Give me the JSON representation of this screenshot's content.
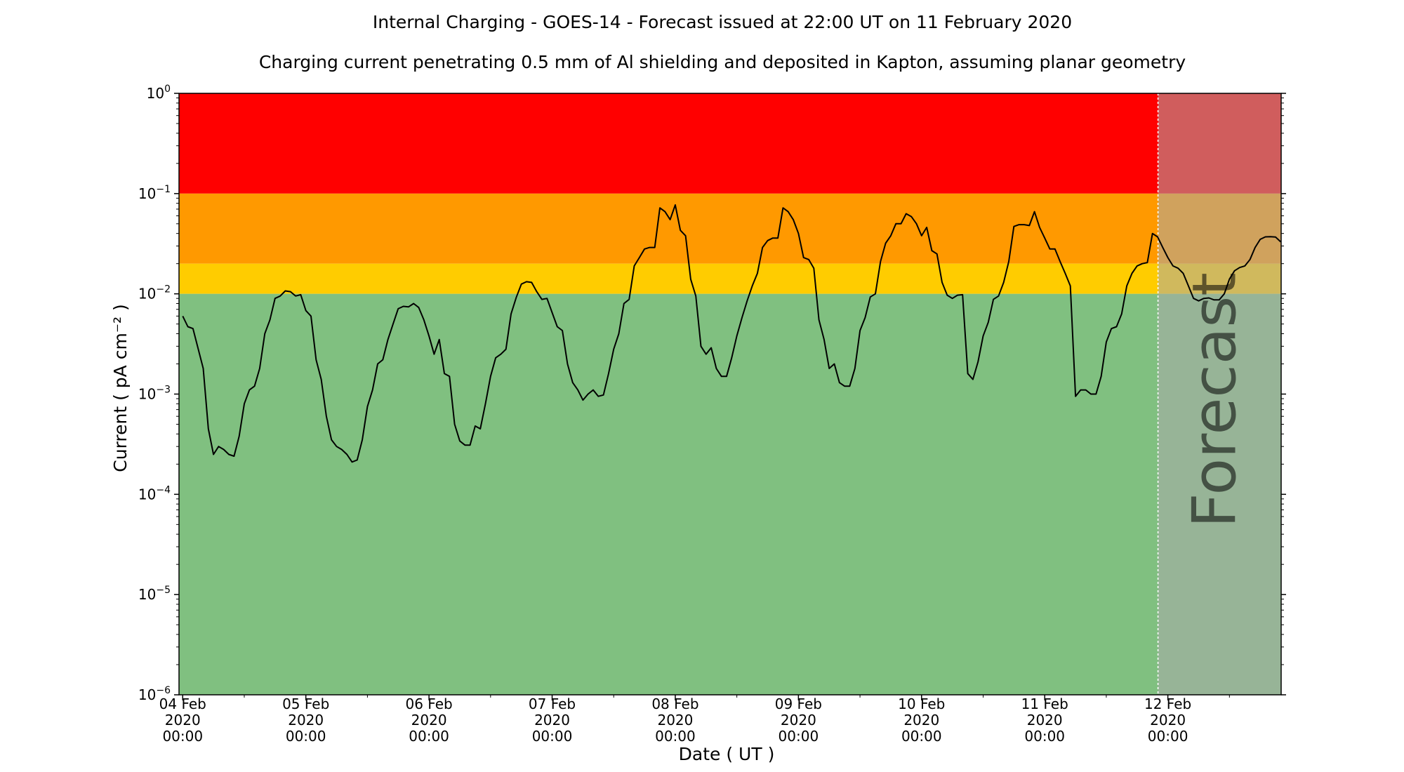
{
  "chart_data": {
    "type": "line",
    "title": "Internal Charging - GOES-14 - Forecast issued at 22:00 UT on 11 February 2020",
    "subtitle": "Charging current penetrating 0.5 mm of Al shielding and deposited in Kapton, assuming planar geometry",
    "xlabel": "Date ( UT )",
    "ylabel": "Current ( pA cm⁻² )",
    "y_scale": "log",
    "ylim": [
      1e-06,
      1
    ],
    "xlim_days": [
      -0.03,
      8.92
    ],
    "grid": false,
    "forecast_label": "Forecast",
    "forecast_start_day": 7.92,
    "x_tick_labels": [
      [
        "04 Feb",
        "2020",
        "00:00"
      ],
      [
        "05 Feb",
        "2020",
        "00:00"
      ],
      [
        "06 Feb",
        "2020",
        "00:00"
      ],
      [
        "07 Feb",
        "2020",
        "00:00"
      ],
      [
        "08 Feb",
        "2020",
        "00:00"
      ],
      [
        "09 Feb",
        "2020",
        "00:00"
      ],
      [
        "10 Feb",
        "2020",
        "00:00"
      ],
      [
        "11 Feb",
        "2020",
        "00:00"
      ],
      [
        "12 Feb",
        "2020",
        "00:00"
      ]
    ],
    "y_tick_labels": [
      {
        "base": "10",
        "exp": "0",
        "value": 1
      },
      {
        "base": "10",
        "exp": "−1",
        "value": 0.1
      },
      {
        "base": "10",
        "exp": "−2",
        "value": 0.01
      },
      {
        "base": "10",
        "exp": "−3",
        "value": 0.001
      },
      {
        "base": "10",
        "exp": "−4",
        "value": 0.0001
      },
      {
        "base": "10",
        "exp": "−5",
        "value": 1e-05
      },
      {
        "base": "10",
        "exp": "−6",
        "value": 1e-06
      }
    ],
    "levels": [
      {
        "from": 0.1,
        "to": 1,
        "color": "#ff0000"
      },
      {
        "from": 0.02,
        "to": 0.1,
        "color": "#ff9900"
      },
      {
        "from": 0.01,
        "to": 0.02,
        "color": "#ffcc00"
      },
      {
        "from": 1e-06,
        "to": 0.01,
        "color": "#80c080"
      }
    ],
    "forecast_overlay_color": "#a9a9a9",
    "line_color": "#000000",
    "series": [
      {
        "points": [
          [
            "2020-02-04 00:00",
            0.006
          ],
          [
            "2020-02-04 01:00",
            0.0047
          ],
          [
            "2020-02-04 02:00",
            0.0045
          ],
          [
            "2020-02-04 04:00",
            0.0018
          ],
          [
            "2020-02-04 05:00",
            0.00045
          ],
          [
            "2020-02-04 06:00",
            0.00025
          ],
          [
            "2020-02-04 07:00",
            0.0003
          ],
          [
            "2020-02-04 08:00",
            0.00028
          ],
          [
            "2020-02-04 09:00",
            0.00025
          ],
          [
            "2020-02-04 10:00",
            0.00024
          ],
          [
            "2020-02-04 11:00",
            0.00038
          ],
          [
            "2020-02-04 12:00",
            0.0008
          ],
          [
            "2020-02-04 13:00",
            0.0011
          ],
          [
            "2020-02-04 14:00",
            0.0012
          ],
          [
            "2020-02-04 15:00",
            0.0018
          ],
          [
            "2020-02-04 16:00",
            0.004
          ],
          [
            "2020-02-04 17:00",
            0.0055
          ],
          [
            "2020-02-04 18:00",
            0.009
          ],
          [
            "2020-02-04 19:00",
            0.0095
          ],
          [
            "2020-02-04 20:00",
            0.0107
          ],
          [
            "2020-02-04 21:00",
            0.0105
          ],
          [
            "2020-02-04 22:00",
            0.0095
          ],
          [
            "2020-02-04 23:00",
            0.0098
          ],
          [
            "2020-02-05 00:00",
            0.0068
          ],
          [
            "2020-02-05 01:00",
            0.006
          ],
          [
            "2020-02-05 02:00",
            0.0022
          ],
          [
            "2020-02-05 03:00",
            0.0014
          ],
          [
            "2020-02-05 04:00",
            0.0006
          ],
          [
            "2020-02-05 05:00",
            0.00035
          ],
          [
            "2020-02-05 06:00",
            0.0003
          ],
          [
            "2020-02-05 07:00",
            0.00028
          ],
          [
            "2020-02-05 08:00",
            0.00025
          ],
          [
            "2020-02-05 09:00",
            0.00021
          ],
          [
            "2020-02-05 10:00",
            0.00022
          ],
          [
            "2020-02-05 11:00",
            0.00035
          ],
          [
            "2020-02-05 12:00",
            0.00075
          ],
          [
            "2020-02-05 13:00",
            0.0011
          ],
          [
            "2020-02-05 14:00",
            0.002
          ],
          [
            "2020-02-05 15:00",
            0.0022
          ],
          [
            "2020-02-05 16:00",
            0.0035
          ],
          [
            "2020-02-05 17:00",
            0.005
          ],
          [
            "2020-02-05 18:00",
            0.0071
          ],
          [
            "2020-02-05 19:00",
            0.0075
          ],
          [
            "2020-02-05 20:00",
            0.0074
          ],
          [
            "2020-02-05 21:00",
            0.008
          ],
          [
            "2020-02-05 22:00",
            0.0073
          ],
          [
            "2020-02-05 23:00",
            0.0055
          ],
          [
            "2020-02-06 00:00",
            0.0038
          ],
          [
            "2020-02-06 01:00",
            0.0025
          ],
          [
            "2020-02-06 02:00",
            0.0035
          ],
          [
            "2020-02-06 03:00",
            0.0016
          ],
          [
            "2020-02-06 04:00",
            0.0015
          ],
          [
            "2020-02-06 05:00",
            0.0005
          ],
          [
            "2020-02-06 06:00",
            0.00034
          ],
          [
            "2020-02-06 07:00",
            0.00031
          ],
          [
            "2020-02-06 08:00",
            0.00031
          ],
          [
            "2020-02-06 09:00",
            0.00048
          ],
          [
            "2020-02-06 10:00",
            0.00045
          ],
          [
            "2020-02-06 11:00",
            0.0008
          ],
          [
            "2020-02-06 12:00",
            0.0015
          ],
          [
            "2020-02-06 13:00",
            0.0023
          ],
          [
            "2020-02-06 14:00",
            0.0025
          ],
          [
            "2020-02-06 15:00",
            0.0028
          ],
          [
            "2020-02-06 16:00",
            0.0063
          ],
          [
            "2020-02-06 17:00",
            0.0092
          ],
          [
            "2020-02-06 18:00",
            0.0125
          ],
          [
            "2020-02-06 19:00",
            0.0132
          ],
          [
            "2020-02-06 20:00",
            0.013
          ],
          [
            "2020-02-06 21:00",
            0.0105
          ],
          [
            "2020-02-06 22:00",
            0.0088
          ],
          [
            "2020-02-06 23:00",
            0.009
          ],
          [
            "2020-02-07 00:00",
            0.0065
          ],
          [
            "2020-02-07 01:00",
            0.0047
          ],
          [
            "2020-02-07 02:00",
            0.0043
          ],
          [
            "2020-02-07 03:00",
            0.002
          ],
          [
            "2020-02-07 04:00",
            0.0013
          ],
          [
            "2020-02-07 05:00",
            0.0011
          ],
          [
            "2020-02-07 06:00",
            0.00087
          ],
          [
            "2020-02-07 07:00",
            0.001
          ],
          [
            "2020-02-07 08:00",
            0.0011
          ],
          [
            "2020-02-07 09:00",
            0.00095
          ],
          [
            "2020-02-07 10:00",
            0.00098
          ],
          [
            "2020-02-07 11:00",
            0.0016
          ],
          [
            "2020-02-07 12:00",
            0.0028
          ],
          [
            "2020-02-07 13:00",
            0.004
          ],
          [
            "2020-02-07 14:00",
            0.008
          ],
          [
            "2020-02-07 15:00",
            0.0088
          ],
          [
            "2020-02-07 16:00",
            0.019
          ],
          [
            "2020-02-07 17:00",
            0.023
          ],
          [
            "2020-02-07 18:00",
            0.028
          ],
          [
            "2020-02-07 19:00",
            0.029
          ],
          [
            "2020-02-07 20:00",
            0.029
          ],
          [
            "2020-02-07 21:00",
            0.072
          ],
          [
            "2020-02-07 22:00",
            0.066
          ],
          [
            "2020-02-07 23:00",
            0.055
          ],
          [
            "2020-02-08 00:00",
            0.077
          ],
          [
            "2020-02-08 01:00",
            0.043
          ],
          [
            "2020-02-08 02:00",
            0.038
          ],
          [
            "2020-02-08 03:00",
            0.014
          ],
          [
            "2020-02-08 04:00",
            0.0095
          ],
          [
            "2020-02-08 05:00",
            0.003
          ],
          [
            "2020-02-08 06:00",
            0.0025
          ],
          [
            "2020-02-08 07:00",
            0.0029
          ],
          [
            "2020-02-08 08:00",
            0.0018
          ],
          [
            "2020-02-08 09:00",
            0.0015
          ],
          [
            "2020-02-08 10:00",
            0.0015
          ],
          [
            "2020-02-08 11:00",
            0.0023
          ],
          [
            "2020-02-08 12:00",
            0.0038
          ],
          [
            "2020-02-08 13:00",
            0.0058
          ],
          [
            "2020-02-08 14:00",
            0.0085
          ],
          [
            "2020-02-08 15:00",
            0.012
          ],
          [
            "2020-02-08 16:00",
            0.016
          ],
          [
            "2020-02-08 17:00",
            0.029
          ],
          [
            "2020-02-08 18:00",
            0.034
          ],
          [
            "2020-02-08 19:00",
            0.036
          ],
          [
            "2020-02-08 20:00",
            0.036
          ],
          [
            "2020-02-08 21:00",
            0.072
          ],
          [
            "2020-02-08 22:00",
            0.066
          ],
          [
            "2020-02-08 23:00",
            0.055
          ],
          [
            "2020-02-09 00:00",
            0.04
          ],
          [
            "2020-02-09 01:00",
            0.023
          ],
          [
            "2020-02-09 02:00",
            0.022
          ],
          [
            "2020-02-09 03:00",
            0.018
          ],
          [
            "2020-02-09 04:00",
            0.0055
          ],
          [
            "2020-02-09 05:00",
            0.0035
          ],
          [
            "2020-02-09 06:00",
            0.0018
          ],
          [
            "2020-02-09 07:00",
            0.002
          ],
          [
            "2020-02-09 08:00",
            0.0013
          ],
          [
            "2020-02-09 09:00",
            0.0012
          ],
          [
            "2020-02-09 10:00",
            0.0012
          ],
          [
            "2020-02-09 11:00",
            0.0018
          ],
          [
            "2020-02-09 12:00",
            0.0043
          ],
          [
            "2020-02-09 13:00",
            0.0058
          ],
          [
            "2020-02-09 14:00",
            0.0093
          ],
          [
            "2020-02-09 15:00",
            0.01
          ],
          [
            "2020-02-09 16:00",
            0.021
          ],
          [
            "2020-02-09 17:00",
            0.032
          ],
          [
            "2020-02-09 18:00",
            0.038
          ],
          [
            "2020-02-09 19:00",
            0.05
          ],
          [
            "2020-02-09 20:00",
            0.05
          ],
          [
            "2020-02-09 21:00",
            0.063
          ],
          [
            "2020-02-09 22:00",
            0.059
          ],
          [
            "2020-02-09 23:00",
            0.05
          ],
          [
            "2020-02-10 00:00",
            0.038
          ],
          [
            "2020-02-10 01:00",
            0.046
          ],
          [
            "2020-02-10 02:00",
            0.027
          ],
          [
            "2020-02-10 03:00",
            0.025
          ],
          [
            "2020-02-10 04:00",
            0.013
          ],
          [
            "2020-02-10 05:00",
            0.0097
          ],
          [
            "2020-02-10 06:00",
            0.009
          ],
          [
            "2020-02-10 07:00",
            0.0097
          ],
          [
            "2020-02-10 08:00",
            0.0098
          ],
          [
            "2020-02-10 09:00",
            0.0016
          ],
          [
            "2020-02-10 10:00",
            0.0014
          ],
          [
            "2020-02-10 11:00",
            0.0021
          ],
          [
            "2020-02-10 12:00",
            0.0038
          ],
          [
            "2020-02-10 13:00",
            0.0052
          ],
          [
            "2020-02-10 14:00",
            0.0088
          ],
          [
            "2020-02-10 15:00",
            0.0095
          ],
          [
            "2020-02-10 16:00",
            0.013
          ],
          [
            "2020-02-10 17:00",
            0.021
          ],
          [
            "2020-02-10 18:00",
            0.047
          ],
          [
            "2020-02-10 19:00",
            0.049
          ],
          [
            "2020-02-10 20:00",
            0.049
          ],
          [
            "2020-02-10 21:00",
            0.048
          ],
          [
            "2020-02-10 22:00",
            0.066
          ],
          [
            "2020-02-10 23:00",
            0.046
          ],
          [
            "2020-02-11 00:00",
            0.036
          ],
          [
            "2020-02-11 01:00",
            0.028
          ],
          [
            "2020-02-11 02:00",
            0.028
          ],
          [
            "2020-02-11 03:00",
            0.021
          ],
          [
            "2020-02-11 04:00",
            0.016
          ],
          [
            "2020-02-11 05:00",
            0.012
          ],
          [
            "2020-02-11 06:00",
            0.00095
          ],
          [
            "2020-02-11 07:00",
            0.0011
          ],
          [
            "2020-02-11 08:00",
            0.0011
          ],
          [
            "2020-02-11 09:00",
            0.001
          ],
          [
            "2020-02-11 10:00",
            0.001
          ],
          [
            "2020-02-11 11:00",
            0.0015
          ],
          [
            "2020-02-11 12:00",
            0.0033
          ],
          [
            "2020-02-11 13:00",
            0.0045
          ],
          [
            "2020-02-11 14:00",
            0.0047
          ],
          [
            "2020-02-11 15:00",
            0.0063
          ],
          [
            "2020-02-11 16:00",
            0.012
          ],
          [
            "2020-02-11 17:00",
            0.016
          ],
          [
            "2020-02-11 18:00",
            0.019
          ],
          [
            "2020-02-11 19:00",
            0.02
          ],
          [
            "2020-02-11 20:00",
            0.0205
          ],
          [
            "2020-02-11 21:00",
            0.04
          ],
          [
            "2020-02-11 22:00",
            0.037
          ],
          [
            "2020-02-11 23:00",
            0.029
          ],
          [
            "2020-02-12 00:00",
            0.023
          ],
          [
            "2020-02-12 01:00",
            0.019
          ],
          [
            "2020-02-12 02:00",
            0.018
          ],
          [
            "2020-02-12 03:00",
            0.016
          ],
          [
            "2020-02-12 04:00",
            0.012
          ],
          [
            "2020-02-12 05:00",
            0.009
          ],
          [
            "2020-02-12 06:00",
            0.0085
          ],
          [
            "2020-02-12 07:00",
            0.009
          ],
          [
            "2020-02-12 08:00",
            0.0091
          ],
          [
            "2020-02-12 09:00",
            0.0087
          ],
          [
            "2020-02-12 10:00",
            0.0087
          ],
          [
            "2020-02-12 11:00",
            0.01
          ],
          [
            "2020-02-12 12:00",
            0.014
          ],
          [
            "2020-02-12 13:00",
            0.017
          ],
          [
            "2020-02-12 14:00",
            0.0183
          ],
          [
            "2020-02-12 15:00",
            0.019
          ],
          [
            "2020-02-12 16:00",
            0.022
          ],
          [
            "2020-02-12 17:00",
            0.029
          ],
          [
            "2020-02-12 18:00",
            0.035
          ],
          [
            "2020-02-12 19:00",
            0.037
          ],
          [
            "2020-02-12 20:00",
            0.0372
          ],
          [
            "2020-02-12 21:00",
            0.0368
          ],
          [
            "2020-02-12 22:00",
            0.033
          ]
        ]
      }
    ]
  }
}
